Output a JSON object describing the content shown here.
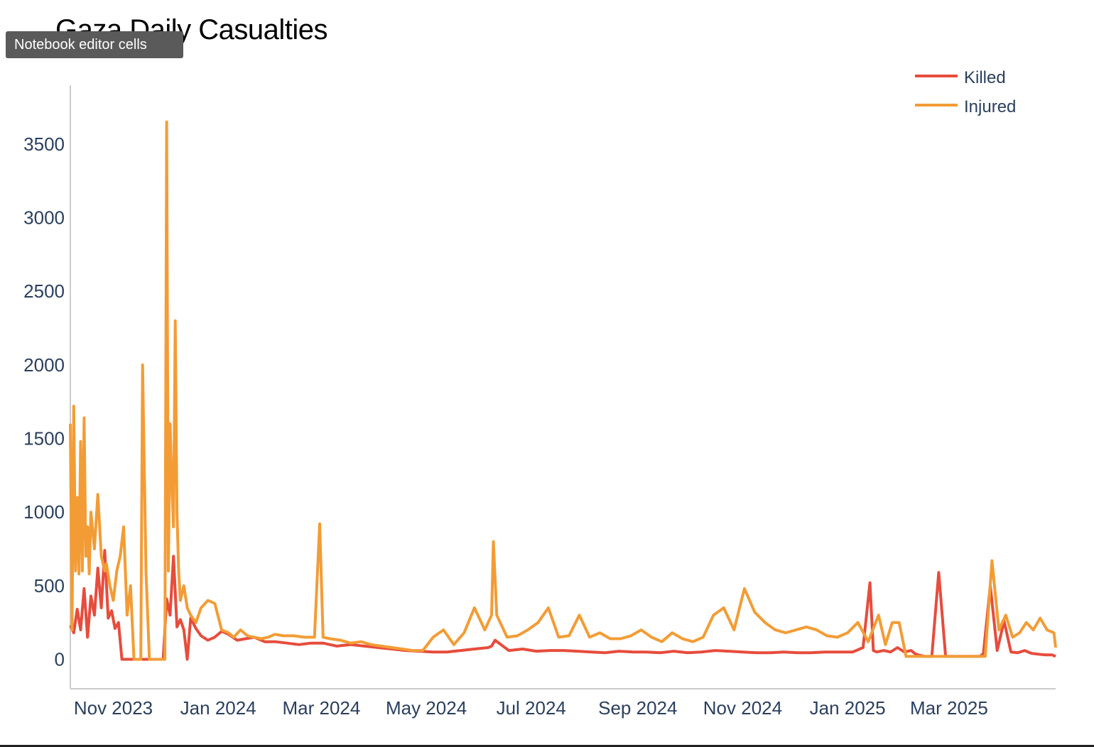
{
  "tooltip": {
    "text": "Notebook editor cells"
  },
  "colors": {
    "killed": "#e74c3c",
    "injured": "#f39c35",
    "axis": "#cccccc",
    "text": "#2a3f5f"
  },
  "chart_data": {
    "type": "line",
    "title": "Gaza Daily Casualties",
    "xlabel": "",
    "ylabel": "",
    "ylim": [
      -200,
      3900
    ],
    "yticks": [
      0,
      500,
      1000,
      1500,
      2000,
      2500,
      3000,
      3500
    ],
    "xlim": [
      "2023-10-07",
      "2025-05-02"
    ],
    "xticks": [
      {
        "date": "2023-11-01",
        "label": "Nov 2023"
      },
      {
        "date": "2024-01-01",
        "label": "Jan 2024"
      },
      {
        "date": "2024-03-01",
        "label": "Mar 2024"
      },
      {
        "date": "2024-05-01",
        "label": "May 2024"
      },
      {
        "date": "2024-07-01",
        "label": "Jul 2024"
      },
      {
        "date": "2024-09-01",
        "label": "Sep 2024"
      },
      {
        "date": "2024-11-01",
        "label": "Nov 2024"
      },
      {
        "date": "2025-01-01",
        "label": "Jan 2025"
      },
      {
        "date": "2025-03-01",
        "label": "Mar 2025"
      }
    ],
    "legend": "top-right",
    "grid": false,
    "series": [
      {
        "name": "Killed",
        "color": "#e74c3c",
        "x": [
          "2023-10-07",
          "2023-10-09",
          "2023-10-11",
          "2023-10-13",
          "2023-10-15",
          "2023-10-17",
          "2023-10-19",
          "2023-10-21",
          "2023-10-23",
          "2023-10-25",
          "2023-10-27",
          "2023-10-29",
          "2023-10-31",
          "2023-11-02",
          "2023-11-04",
          "2023-11-06",
          "2023-11-08",
          "2023-11-10",
          "2023-11-12",
          "2023-11-14",
          "2023-11-16",
          "2023-11-18",
          "2023-11-20",
          "2023-11-22",
          "2023-11-24",
          "2023-11-26",
          "2023-11-28",
          "2023-11-30",
          "2023-12-02",
          "2023-12-04",
          "2023-12-06",
          "2023-12-08",
          "2023-12-10",
          "2023-12-12",
          "2023-12-14",
          "2023-12-16",
          "2023-12-19",
          "2023-12-22",
          "2023-12-26",
          "2023-12-30",
          "2024-01-03",
          "2024-01-07",
          "2024-01-12",
          "2024-01-17",
          "2024-01-22",
          "2024-01-28",
          "2024-02-03",
          "2024-02-10",
          "2024-02-17",
          "2024-02-24",
          "2024-03-02",
          "2024-03-10",
          "2024-03-18",
          "2024-03-26",
          "2024-04-03",
          "2024-04-11",
          "2024-04-19",
          "2024-04-27",
          "2024-05-05",
          "2024-05-13",
          "2024-05-21",
          "2024-05-29",
          "2024-06-06",
          "2024-06-08",
          "2024-06-10",
          "2024-06-18",
          "2024-06-26",
          "2024-07-04",
          "2024-07-12",
          "2024-07-20",
          "2024-07-28",
          "2024-08-05",
          "2024-08-13",
          "2024-08-21",
          "2024-08-29",
          "2024-09-06",
          "2024-09-14",
          "2024-09-22",
          "2024-09-30",
          "2024-10-08",
          "2024-10-16",
          "2024-10-24",
          "2024-11-01",
          "2024-11-09",
          "2024-11-17",
          "2024-11-25",
          "2024-12-03",
          "2024-12-11",
          "2024-12-19",
          "2024-12-27",
          "2025-01-04",
          "2025-01-10",
          "2025-01-14",
          "2025-01-16",
          "2025-01-18",
          "2025-01-22",
          "2025-01-26",
          "2025-01-30",
          "2025-02-03",
          "2025-02-07",
          "2025-02-09",
          "2025-02-11",
          "2025-02-15",
          "2025-02-19",
          "2025-02-23",
          "2025-02-27",
          "2025-03-03",
          "2025-03-07",
          "2025-03-11",
          "2025-03-15",
          "2025-03-17",
          "2025-03-18",
          "2025-03-19",
          "2025-03-21",
          "2025-03-25",
          "2025-03-29",
          "2025-04-02",
          "2025-04-06",
          "2025-04-10",
          "2025-04-14",
          "2025-04-18",
          "2025-04-22",
          "2025-04-26",
          "2025-04-30",
          "2025-05-02"
        ],
        "values": [
          230,
          180,
          340,
          200,
          480,
          150,
          430,
          300,
          620,
          350,
          740,
          280,
          330,
          210,
          250,
          0,
          0,
          0,
          0,
          0,
          0,
          0,
          0,
          0,
          0,
          0,
          0,
          0,
          410,
          300,
          700,
          220,
          270,
          200,
          0,
          280,
          210,
          160,
          130,
          150,
          190,
          170,
          130,
          140,
          150,
          120,
          120,
          110,
          100,
          110,
          110,
          90,
          100,
          90,
          80,
          70,
          60,
          55,
          50,
          50,
          60,
          70,
          80,
          90,
          130,
          60,
          70,
          55,
          60,
          60,
          55,
          50,
          45,
          55,
          50,
          50,
          45,
          55,
          45,
          50,
          60,
          55,
          50,
          45,
          45,
          50,
          45,
          45,
          50,
          50,
          50,
          80,
          520,
          60,
          50,
          60,
          50,
          80,
          50,
          60,
          40,
          30,
          20,
          20,
          590,
          20,
          20,
          20,
          20,
          20,
          20,
          20,
          20,
          40,
          500,
          60,
          260,
          50,
          45,
          60,
          40,
          35,
          30,
          30,
          20
        ]
      },
      {
        "name": "Injured",
        "color": "#f39c35",
        "x": [
          "2023-10-07",
          "2023-10-08",
          "2023-10-09",
          "2023-10-10",
          "2023-10-11",
          "2023-10-12",
          "2023-10-13",
          "2023-10-14",
          "2023-10-15",
          "2023-10-16",
          "2023-10-17",
          "2023-10-18",
          "2023-10-19",
          "2023-10-21",
          "2023-10-23",
          "2023-10-25",
          "2023-10-27",
          "2023-10-28",
          "2023-10-30",
          "2023-11-01",
          "2023-11-03",
          "2023-11-05",
          "2023-11-07",
          "2023-11-09",
          "2023-11-11",
          "2023-11-13",
          "2023-11-15",
          "2023-11-17",
          "2023-11-18",
          "2023-11-20",
          "2023-11-22",
          "2023-11-24",
          "2023-11-26",
          "2023-11-28",
          "2023-11-30",
          "2023-12-01",
          "2023-12-02",
          "2023-12-03",
          "2023-12-04",
          "2023-12-05",
          "2023-12-06",
          "2023-12-07",
          "2023-12-08",
          "2023-12-09",
          "2023-12-10",
          "2023-12-12",
          "2023-12-14",
          "2023-12-16",
          "2023-12-19",
          "2023-12-22",
          "2023-12-26",
          "2023-12-30",
          "2024-01-03",
          "2024-01-07",
          "2024-01-10",
          "2024-01-14",
          "2024-01-18",
          "2024-01-22",
          "2024-01-26",
          "2024-01-30",
          "2024-02-03",
          "2024-02-08",
          "2024-02-14",
          "2024-02-20",
          "2024-02-26",
          "2024-02-29",
          "2024-03-02",
          "2024-03-06",
          "2024-03-12",
          "2024-03-18",
          "2024-03-24",
          "2024-03-30",
          "2024-04-05",
          "2024-04-11",
          "2024-04-17",
          "2024-04-23",
          "2024-04-29",
          "2024-05-05",
          "2024-05-11",
          "2024-05-17",
          "2024-05-23",
          "2024-05-29",
          "2024-06-04",
          "2024-06-08",
          "2024-06-09",
          "2024-06-11",
          "2024-06-17",
          "2024-06-23",
          "2024-06-29",
          "2024-07-05",
          "2024-07-11",
          "2024-07-17",
          "2024-07-23",
          "2024-07-29",
          "2024-08-04",
          "2024-08-10",
          "2024-08-16",
          "2024-08-22",
          "2024-08-28",
          "2024-09-03",
          "2024-09-09",
          "2024-09-15",
          "2024-09-21",
          "2024-09-27",
          "2024-10-03",
          "2024-10-09",
          "2024-10-15",
          "2024-10-21",
          "2024-10-27",
          "2024-11-02",
          "2024-11-08",
          "2024-11-14",
          "2024-11-20",
          "2024-11-26",
          "2024-12-02",
          "2024-12-08",
          "2024-12-14",
          "2024-12-20",
          "2024-12-26",
          "2025-01-01",
          "2025-01-07",
          "2025-01-13",
          "2025-01-19",
          "2025-01-23",
          "2025-01-27",
          "2025-01-31",
          "2025-02-04",
          "2025-02-08",
          "2025-02-12",
          "2025-02-16",
          "2025-02-20",
          "2025-02-24",
          "2025-02-28",
          "2025-03-04",
          "2025-03-08",
          "2025-03-12",
          "2025-03-16",
          "2025-03-19",
          "2025-03-20",
          "2025-03-22",
          "2025-03-26",
          "2025-03-30",
          "2025-04-03",
          "2025-04-07",
          "2025-04-11",
          "2025-04-15",
          "2025-04-19",
          "2025-04-23",
          "2025-04-27",
          "2025-05-01",
          "2025-05-02"
        ],
        "values": [
          1600,
          200,
          1720,
          600,
          1100,
          580,
          1480,
          600,
          1640,
          700,
          900,
          580,
          1000,
          750,
          1120,
          700,
          600,
          650,
          500,
          400,
          600,
          700,
          900,
          300,
          500,
          0,
          0,
          0,
          2000,
          600,
          0,
          0,
          0,
          0,
          0,
          0,
          3650,
          600,
          1600,
          1200,
          900,
          2300,
          1000,
          600,
          400,
          500,
          350,
          300,
          250,
          350,
          400,
          380,
          200,
          180,
          150,
          200,
          160,
          150,
          140,
          150,
          170,
          160,
          160,
          150,
          150,
          920,
          150,
          140,
          130,
          110,
          120,
          100,
          90,
          80,
          70,
          60,
          60,
          150,
          200,
          100,
          180,
          350,
          200,
          300,
          800,
          300,
          150,
          160,
          200,
          250,
          350,
          150,
          160,
          300,
          150,
          180,
          140,
          140,
          160,
          200,
          150,
          120,
          180,
          140,
          120,
          150,
          300,
          350,
          200,
          480,
          320,
          250,
          200,
          180,
          200,
          220,
          200,
          160,
          150,
          180,
          250,
          120,
          300,
          100,
          250,
          250,
          20,
          20,
          20,
          20,
          20,
          20,
          20,
          20,
          20,
          20,
          20,
          20,
          20,
          20,
          670,
          200,
          300,
          150,
          180,
          250,
          200,
          280,
          200,
          180,
          80
        ]
      }
    ]
  }
}
